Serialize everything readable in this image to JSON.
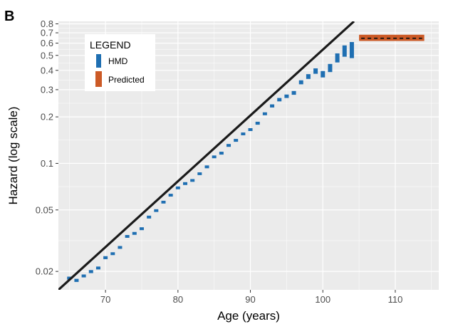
{
  "panel_label": "B",
  "colors": {
    "hmd": "#1f6fb2",
    "predicted": "#cc5a26",
    "line": "#1a1a1a",
    "panel_bg": "#ebebeb",
    "grid": "#ffffff"
  },
  "chart_data": {
    "type": "scatter",
    "xlabel": "Age (years)",
    "ylabel": "Hazard (log scale)",
    "xlim": [
      63.5,
      116
    ],
    "ylim": [
      0.0152,
      0.83
    ],
    "y_scale": "log",
    "x_ticks": [
      70,
      80,
      90,
      100,
      110
    ],
    "x_tick_labels": [
      "70",
      "80",
      "90",
      "100",
      "110"
    ],
    "y_ticks": [
      0.02,
      0.05,
      0.1,
      0.2,
      0.3,
      0.4,
      0.5,
      0.6,
      0.7,
      0.8
    ],
    "y_tick_labels": [
      "0.02",
      "0.05",
      "0.1",
      "0.2",
      "0.3",
      "0.4",
      "0.5",
      "0.6",
      "0.7",
      "0.8"
    ],
    "grid": true,
    "legend": {
      "title": "LEGEND",
      "placement": "top-left",
      "entries": [
        "HMD",
        "Predicted"
      ]
    },
    "series": [
      {
        "name": "HMD",
        "kind": "interval",
        "x": [
          65,
          66,
          67,
          68,
          69,
          70,
          71,
          72,
          73,
          74,
          75,
          76,
          77,
          78,
          79,
          80,
          81,
          82,
          83,
          84,
          85,
          86,
          87,
          88,
          89,
          90,
          91,
          92,
          93,
          94,
          95,
          96,
          97,
          98,
          99,
          100,
          101,
          102,
          103,
          104
        ],
        "low": [
          0.0177,
          0.0171,
          0.0183,
          0.0195,
          0.0206,
          0.024,
          0.0255,
          0.028,
          0.033,
          0.0345,
          0.037,
          0.044,
          0.0485,
          0.055,
          0.061,
          0.068,
          0.0725,
          0.076,
          0.084,
          0.093,
          0.108,
          0.114,
          0.128,
          0.138,
          0.152,
          0.162,
          0.178,
          0.205,
          0.23,
          0.252,
          0.265,
          0.278,
          0.325,
          0.352,
          0.38,
          0.36,
          0.39,
          0.45,
          0.49,
          0.48
        ],
        "high": [
          0.0185,
          0.0179,
          0.0191,
          0.0204,
          0.0215,
          0.0251,
          0.0266,
          0.0292,
          0.0344,
          0.036,
          0.0386,
          0.0459,
          0.0505,
          0.0573,
          0.0636,
          0.0709,
          0.0756,
          0.0792,
          0.0875,
          0.097,
          0.1125,
          0.119,
          0.1335,
          0.144,
          0.1585,
          0.169,
          0.186,
          0.214,
          0.241,
          0.265,
          0.279,
          0.294,
          0.345,
          0.378,
          0.412,
          0.396,
          0.44,
          0.515,
          0.58,
          0.61
        ]
      },
      {
        "name": "Predicted",
        "kind": "band",
        "x": [
          105,
          114
        ],
        "low": 0.62,
        "high": 0.68,
        "mean": 0.645
      },
      {
        "name": "fit-line",
        "kind": "line",
        "x": [
          63.5,
          104.3
        ],
        "y": [
          0.0152,
          0.83
        ]
      }
    ]
  }
}
